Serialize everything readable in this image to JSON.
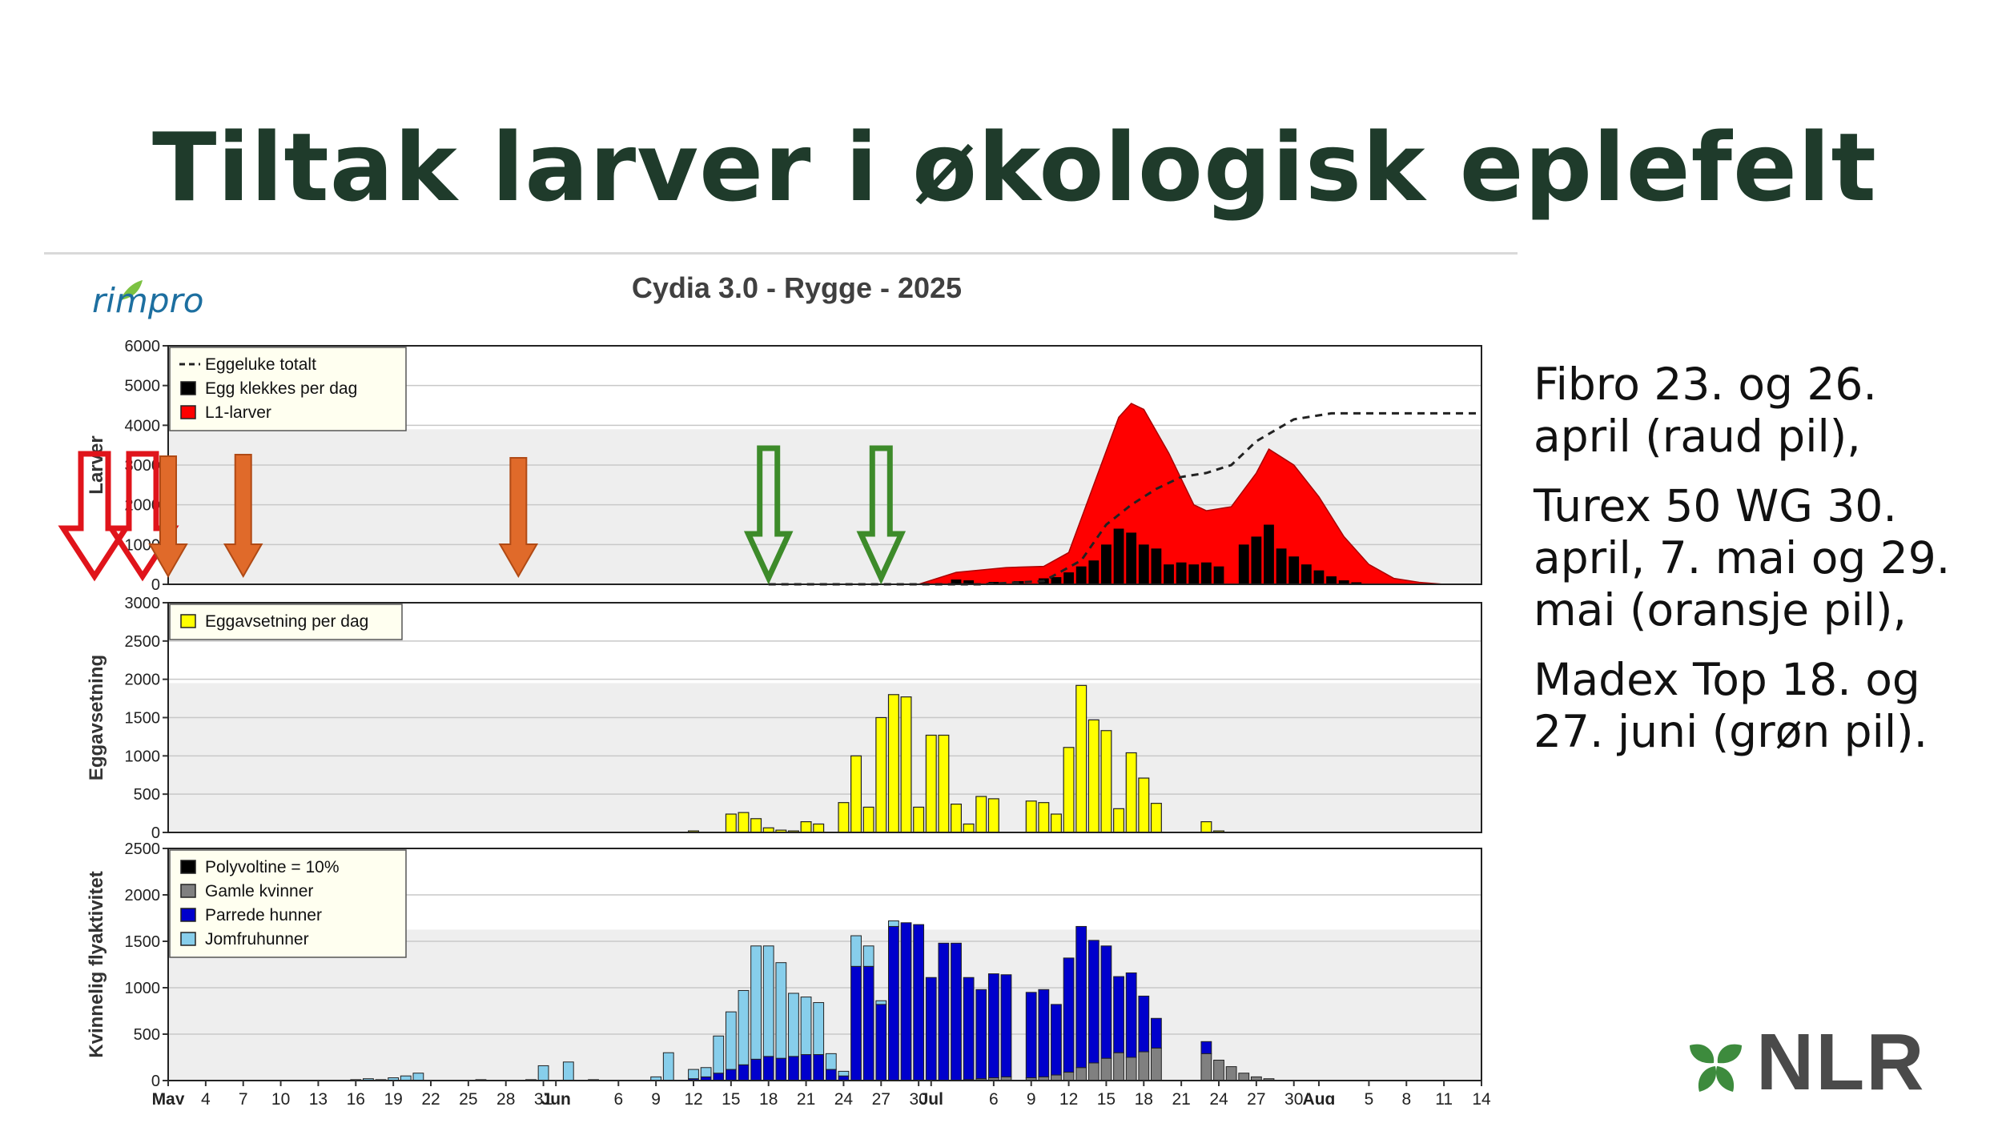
{
  "slide": {
    "title": "Tiltak larver i økologisk eplefelt",
    "logo_text": "rimpro",
    "notes": [
      "Fibro 23. og 26. april (raud pil),",
      "Turex 50 WG 30. april, 7. mai og 29. mai (oransje pil),",
      "Madex Top 18. og 27. juni (grøn pil)."
    ],
    "brand": "NLR"
  },
  "colors": {
    "title": "#1f3b2b",
    "red_arrow": "#e0141b",
    "orange_arrow": "#e06a2a",
    "green_arrow": "#3d8b2a",
    "l1": "#ff0000",
    "egg_deposit": "#ffff00",
    "virgin": "#87ceeb",
    "mated": "#0000cc",
    "old": "#808080",
    "black": "#000000",
    "nlr_leaf": "#3d8b3d"
  },
  "chart_data": {
    "title": "Cydia 3.0 - Rygge - 2025",
    "x_ticks": [
      {
        "date": "2025-05-01",
        "label": "May"
      },
      {
        "date": "2025-05-04",
        "label": "4"
      },
      {
        "date": "2025-05-07",
        "label": "7"
      },
      {
        "date": "2025-05-10",
        "label": "10"
      },
      {
        "date": "2025-05-13",
        "label": "13"
      },
      {
        "date": "2025-05-16",
        "label": "16"
      },
      {
        "date": "2025-05-19",
        "label": "19"
      },
      {
        "date": "2025-05-22",
        "label": "22"
      },
      {
        "date": "2025-05-25",
        "label": "25"
      },
      {
        "date": "2025-05-28",
        "label": "28"
      },
      {
        "date": "2025-05-31",
        "label": "31"
      },
      {
        "date": "2025-06-01",
        "label": "Jun"
      },
      {
        "date": "2025-06-06",
        "label": "6"
      },
      {
        "date": "2025-06-09",
        "label": "9"
      },
      {
        "date": "2025-06-12",
        "label": "12"
      },
      {
        "date": "2025-06-15",
        "label": "15"
      },
      {
        "date": "2025-06-18",
        "label": "18"
      },
      {
        "date": "2025-06-21",
        "label": "21"
      },
      {
        "date": "2025-06-24",
        "label": "24"
      },
      {
        "date": "2025-06-27",
        "label": "27"
      },
      {
        "date": "2025-06-30",
        "label": "30"
      },
      {
        "date": "2025-07-01",
        "label": "Jul"
      },
      {
        "date": "2025-07-06",
        "label": "6"
      },
      {
        "date": "2025-07-09",
        "label": "9"
      },
      {
        "date": "2025-07-12",
        "label": "12"
      },
      {
        "date": "2025-07-15",
        "label": "15"
      },
      {
        "date": "2025-07-18",
        "label": "18"
      },
      {
        "date": "2025-07-21",
        "label": "21"
      },
      {
        "date": "2025-07-24",
        "label": "24"
      },
      {
        "date": "2025-07-27",
        "label": "27"
      },
      {
        "date": "2025-07-30",
        "label": "30"
      },
      {
        "date": "2025-08-01",
        "label": "Aug"
      },
      {
        "date": "2025-08-05",
        "label": "5"
      },
      {
        "date": "2025-08-08",
        "label": "8"
      },
      {
        "date": "2025-08-11",
        "label": "11"
      },
      {
        "date": "2025-08-14",
        "label": "14"
      }
    ],
    "x_range": [
      "2025-05-01",
      "2025-08-14"
    ],
    "panels": [
      {
        "id": "larvae",
        "type": "area+bar+line",
        "ylabel": "Larver",
        "ylim": [
          0,
          6000
        ],
        "y_ticks": [
          0,
          1000,
          2000,
          3000,
          4000,
          5000,
          6000
        ],
        "legend": [
          "Eggeluke totalt",
          "Egg klekkes per dag",
          "L1-larver"
        ],
        "legend_position": "top-left",
        "l1_larvae": [
          [
            "2025-06-18",
            0
          ],
          [
            "2025-06-30",
            0
          ],
          [
            "2025-07-03",
            300
          ],
          [
            "2025-07-07",
            420
          ],
          [
            "2025-07-10",
            450
          ],
          [
            "2025-07-12",
            800
          ],
          [
            "2025-07-14",
            2500
          ],
          [
            "2025-07-16",
            4200
          ],
          [
            "2025-07-17",
            4550
          ],
          [
            "2025-07-18",
            4400
          ],
          [
            "2025-07-20",
            3300
          ],
          [
            "2025-07-22",
            2000
          ],
          [
            "2025-07-23",
            1850
          ],
          [
            "2025-07-25",
            1950
          ],
          [
            "2025-07-27",
            2800
          ],
          [
            "2025-07-28",
            3400
          ],
          [
            "2025-07-30",
            3000
          ],
          [
            "2025-08-01",
            2200
          ],
          [
            "2025-08-03",
            1200
          ],
          [
            "2025-08-05",
            500
          ],
          [
            "2025-08-07",
            150
          ],
          [
            "2025-08-09",
            50
          ],
          [
            "2025-08-11",
            0
          ]
        ],
        "eggs_hatched_per_day": [
          [
            "2025-07-03",
            120
          ],
          [
            "2025-07-04",
            100
          ],
          [
            "2025-07-06",
            60
          ],
          [
            "2025-07-08",
            80
          ],
          [
            "2025-07-10",
            150
          ],
          [
            "2025-07-11",
            180
          ],
          [
            "2025-07-12",
            300
          ],
          [
            "2025-07-13",
            450
          ],
          [
            "2025-07-14",
            600
          ],
          [
            "2025-07-15",
            1000
          ],
          [
            "2025-07-16",
            1400
          ],
          [
            "2025-07-17",
            1300
          ],
          [
            "2025-07-18",
            1000
          ],
          [
            "2025-07-19",
            900
          ],
          [
            "2025-07-20",
            500
          ],
          [
            "2025-07-21",
            550
          ],
          [
            "2025-07-22",
            500
          ],
          [
            "2025-07-23",
            550
          ],
          [
            "2025-07-24",
            450
          ],
          [
            "2025-07-26",
            1000
          ],
          [
            "2025-07-27",
            1200
          ],
          [
            "2025-07-28",
            1500
          ],
          [
            "2025-07-29",
            900
          ],
          [
            "2025-07-30",
            700
          ],
          [
            "2025-07-31",
            500
          ],
          [
            "2025-08-01",
            350
          ],
          [
            "2025-08-02",
            200
          ],
          [
            "2025-08-03",
            100
          ],
          [
            "2025-08-04",
            50
          ]
        ],
        "egg_hatch_total": [
          [
            "2025-06-18",
            0
          ],
          [
            "2025-06-30",
            0
          ],
          [
            "2025-07-05",
            0
          ],
          [
            "2025-07-10",
            80
          ],
          [
            "2025-07-13",
            600
          ],
          [
            "2025-07-15",
            1500
          ],
          [
            "2025-07-17",
            2000
          ],
          [
            "2025-07-19",
            2400
          ],
          [
            "2025-07-21",
            2700
          ],
          [
            "2025-07-23",
            2800
          ],
          [
            "2025-07-25",
            3000
          ],
          [
            "2025-07-27",
            3600
          ],
          [
            "2025-07-30",
            4150
          ],
          [
            "2025-08-02",
            4300
          ],
          [
            "2025-08-14",
            4300
          ]
        ]
      },
      {
        "id": "egg-laying",
        "type": "bar",
        "ylabel": "Eggavsetning",
        "ylim": [
          0,
          3000
        ],
        "y_ticks": [
          0,
          500,
          1000,
          1500,
          2000,
          2500,
          3000
        ],
        "legend": [
          "Eggavsetning per dag"
        ],
        "legend_position": "top-left",
        "eggs_laid_per_day": [
          [
            "2025-06-12",
            20
          ],
          [
            "2025-06-15",
            240
          ],
          [
            "2025-06-16",
            260
          ],
          [
            "2025-06-17",
            180
          ],
          [
            "2025-06-18",
            60
          ],
          [
            "2025-06-19",
            30
          ],
          [
            "2025-06-20",
            20
          ],
          [
            "2025-06-21",
            140
          ],
          [
            "2025-06-22",
            110
          ],
          [
            "2025-06-24",
            390
          ],
          [
            "2025-06-25",
            1000
          ],
          [
            "2025-06-26",
            330
          ],
          [
            "2025-06-27",
            1500
          ],
          [
            "2025-06-28",
            1800
          ],
          [
            "2025-06-29",
            1770
          ],
          [
            "2025-06-30",
            330
          ],
          [
            "2025-07-01",
            1270
          ],
          [
            "2025-07-02",
            1270
          ],
          [
            "2025-07-03",
            370
          ],
          [
            "2025-07-04",
            110
          ],
          [
            "2025-07-05",
            470
          ],
          [
            "2025-07-06",
            440
          ],
          [
            "2025-07-09",
            410
          ],
          [
            "2025-07-10",
            390
          ],
          [
            "2025-07-11",
            240
          ],
          [
            "2025-07-12",
            1110
          ],
          [
            "2025-07-13",
            1920
          ],
          [
            "2025-07-14",
            1470
          ],
          [
            "2025-07-15",
            1330
          ],
          [
            "2025-07-16",
            310
          ],
          [
            "2025-07-17",
            1040
          ],
          [
            "2025-07-18",
            710
          ],
          [
            "2025-07-19",
            380
          ],
          [
            "2025-07-23",
            140
          ],
          [
            "2025-07-24",
            20
          ]
        ]
      },
      {
        "id": "female-flight",
        "type": "stacked-bar",
        "ylabel": "Kvinnelig flyaktivitet",
        "ylim": [
          0,
          2500
        ],
        "y_ticks": [
          0,
          500,
          1000,
          1500,
          2000,
          2500
        ],
        "legend": [
          "Polyvoltine = 10%",
          "Gamle kvinner",
          "Parrede hunner",
          "Jomfruhunner"
        ],
        "legend_position": "top-left",
        "columns": [
          "date",
          "Polyvoltine = 10%",
          "Gamle kvinner",
          "Parrede hunner",
          "Jomfruhunner"
        ],
        "rows": [
          [
            "2025-05-16",
            0,
            0,
            0,
            10
          ],
          [
            "2025-05-17",
            0,
            0,
            0,
            20
          ],
          [
            "2025-05-18",
            0,
            0,
            0,
            10
          ],
          [
            "2025-05-19",
            0,
            0,
            0,
            30
          ],
          [
            "2025-05-20",
            0,
            0,
            0,
            50
          ],
          [
            "2025-05-21",
            0,
            0,
            0,
            80
          ],
          [
            "2025-05-26",
            0,
            0,
            0,
            10
          ],
          [
            "2025-05-30",
            0,
            0,
            0,
            10
          ],
          [
            "2025-05-31",
            0,
            0,
            0,
            160
          ],
          [
            "2025-06-02",
            0,
            0,
            0,
            200
          ],
          [
            "2025-06-04",
            0,
            0,
            0,
            10
          ],
          [
            "2025-06-09",
            0,
            0,
            0,
            40
          ],
          [
            "2025-06-10",
            0,
            0,
            0,
            300
          ],
          [
            "2025-06-12",
            0,
            0,
            20,
            100
          ],
          [
            "2025-06-13",
            0,
            0,
            40,
            100
          ],
          [
            "2025-06-14",
            0,
            0,
            80,
            400
          ],
          [
            "2025-06-15",
            0,
            0,
            120,
            620
          ],
          [
            "2025-06-16",
            0,
            0,
            170,
            800
          ],
          [
            "2025-06-17",
            0,
            0,
            230,
            1220
          ],
          [
            "2025-06-18",
            0,
            0,
            260,
            1190
          ],
          [
            "2025-06-19",
            0,
            0,
            240,
            1030
          ],
          [
            "2025-06-20",
            0,
            0,
            260,
            680
          ],
          [
            "2025-06-21",
            0,
            0,
            280,
            620
          ],
          [
            "2025-06-22",
            0,
            0,
            280,
            560
          ],
          [
            "2025-06-23",
            0,
            0,
            120,
            170
          ],
          [
            "2025-06-24",
            0,
            0,
            50,
            50
          ],
          [
            "2025-06-25",
            0,
            0,
            1230,
            330
          ],
          [
            "2025-06-26",
            0,
            0,
            1230,
            220
          ],
          [
            "2025-06-27",
            0,
            0,
            820,
            40
          ],
          [
            "2025-06-28",
            0,
            0,
            1660,
            60
          ],
          [
            "2025-06-29",
            0,
            0,
            1700,
            0
          ],
          [
            "2025-06-30",
            0,
            0,
            1680,
            0
          ],
          [
            "2025-07-01",
            0,
            0,
            1110,
            0
          ],
          [
            "2025-07-02",
            0,
            0,
            1480,
            0
          ],
          [
            "2025-07-03",
            0,
            0,
            1480,
            0
          ],
          [
            "2025-07-04",
            0,
            10,
            1100,
            0
          ],
          [
            "2025-07-05",
            0,
            20,
            960,
            0
          ],
          [
            "2025-07-06",
            0,
            30,
            1120,
            0
          ],
          [
            "2025-07-07",
            0,
            40,
            1100,
            0
          ],
          [
            "2025-07-09",
            0,
            30,
            920,
            0
          ],
          [
            "2025-07-10",
            0,
            40,
            940,
            0
          ],
          [
            "2025-07-11",
            0,
            60,
            760,
            0
          ],
          [
            "2025-07-12",
            0,
            90,
            1230,
            0
          ],
          [
            "2025-07-13",
            0,
            140,
            1520,
            0
          ],
          [
            "2025-07-14",
            0,
            190,
            1320,
            0
          ],
          [
            "2025-07-15",
            0,
            240,
            1210,
            0
          ],
          [
            "2025-07-16",
            0,
            300,
            820,
            0
          ],
          [
            "2025-07-17",
            0,
            250,
            910,
            0
          ],
          [
            "2025-07-18",
            0,
            310,
            600,
            0
          ],
          [
            "2025-07-19",
            0,
            350,
            320,
            0
          ],
          [
            "2025-07-23",
            0,
            290,
            130,
            0
          ],
          [
            "2025-07-24",
            0,
            220,
            0,
            0
          ],
          [
            "2025-07-25",
            0,
            150,
            0,
            0
          ],
          [
            "2025-07-26",
            0,
            80,
            0,
            0
          ],
          [
            "2025-07-27",
            0,
            40,
            0,
            0
          ],
          [
            "2025-07-28",
            0,
            20,
            0,
            0
          ]
        ]
      }
    ],
    "treatment_arrows": [
      {
        "date": "2025-04-23",
        "color": "red"
      },
      {
        "date": "2025-04-26",
        "color": "red"
      },
      {
        "date": "2025-04-30",
        "color": "orange"
      },
      {
        "date": "2025-05-07",
        "color": "orange"
      },
      {
        "date": "2025-05-29",
        "color": "orange"
      },
      {
        "date": "2025-06-18",
        "color": "green"
      },
      {
        "date": "2025-06-27",
        "color": "green"
      }
    ]
  }
}
